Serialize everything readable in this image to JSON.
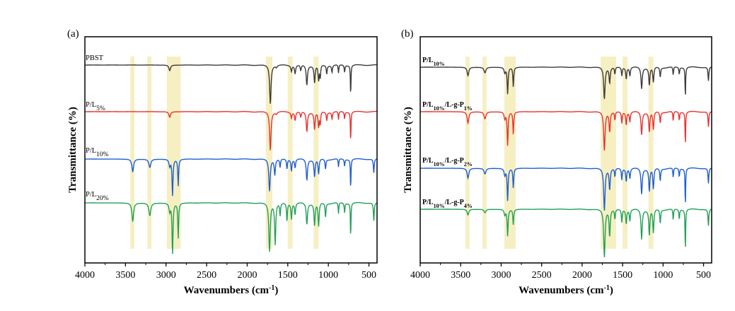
{
  "chart_data": [
    {
      "type": "line",
      "panel": "(a)",
      "xlabel": "Wavenumbers (cm⁻¹)",
      "ylabel": "Transmittance (%)",
      "xlim": [
        4000,
        400
      ],
      "x_reversed": true,
      "x_ticks": [
        4000,
        3500,
        3000,
        2500,
        2000,
        1500,
        1000,
        500
      ],
      "y_ticks": [],
      "grid": false,
      "highlight_bands": [
        [
          3440,
          3390
        ],
        [
          3230,
          3180
        ],
        [
          2990,
          2820
        ],
        [
          1770,
          1690
        ],
        [
          1500,
          1440
        ],
        [
          1180,
          1120
        ]
      ],
      "series": [
        {
          "name": "PBST",
          "name_parts": [
            [
              "PBST",
              ""
            ]
          ],
          "color": "#3c3c3c",
          "offset": 0,
          "peaks": [
            [
              2955,
              8,
              12
            ],
            [
              1715,
              55,
              10
            ],
            [
              1640,
              3,
              10
            ],
            [
              1455,
              8,
              8
            ],
            [
              1410,
              12,
              8
            ],
            [
              1340,
              8,
              8
            ],
            [
              1265,
              28,
              9
            ],
            [
              1170,
              25,
              8
            ],
            [
              1120,
              22,
              8
            ],
            [
              1100,
              18,
              6
            ],
            [
              1020,
              12,
              6
            ],
            [
              955,
              10,
              6
            ],
            [
              875,
              12,
              5
            ],
            [
              800,
              10,
              5
            ],
            [
              725,
              45,
              4
            ]
          ]
        },
        {
          "name": "P/L5%",
          "name_parts": [
            [
              "P/L",
              ""
            ],
            [
              "5%",
              "sub"
            ]
          ],
          "color": "#e8322f",
          "offset": 1,
          "peaks": [
            [
              2955,
              8,
              12
            ],
            [
              1715,
              55,
              10
            ],
            [
              1640,
              3,
              10
            ],
            [
              1455,
              8,
              8
            ],
            [
              1410,
              12,
              8
            ],
            [
              1340,
              8,
              8
            ],
            [
              1265,
              28,
              9
            ],
            [
              1170,
              25,
              8
            ],
            [
              1120,
              22,
              8
            ],
            [
              1100,
              18,
              6
            ],
            [
              1020,
              12,
              6
            ],
            [
              955,
              10,
              6
            ],
            [
              875,
              12,
              5
            ],
            [
              800,
              10,
              5
            ],
            [
              725,
              45,
              4
            ]
          ]
        },
        {
          "name": "P/L10%",
          "name_parts": [
            [
              "P/L",
              ""
            ],
            [
              "10%",
              "sub"
            ]
          ],
          "color": "#1f5fd2",
          "offset": 2,
          "peaks": [
            [
              3410,
              18,
              12
            ],
            [
              3200,
              12,
              14
            ],
            [
              2955,
              10,
              10
            ],
            [
              2920,
              52,
              7
            ],
            [
              2850,
              38,
              6
            ],
            [
              1725,
              45,
              10
            ],
            [
              1660,
              22,
              8
            ],
            [
              1595,
              12,
              6
            ],
            [
              1510,
              14,
              6
            ],
            [
              1455,
              16,
              7
            ],
            [
              1410,
              12,
              7
            ],
            [
              1265,
              30,
              9
            ],
            [
              1170,
              25,
              8
            ],
            [
              1120,
              22,
              8
            ],
            [
              1035,
              14,
              6
            ],
            [
              875,
              12,
              5
            ],
            [
              800,
              10,
              5
            ],
            [
              725,
              45,
              4
            ],
            [
              440,
              20,
              6
            ]
          ]
        },
        {
          "name": "P/L20%",
          "name_parts": [
            [
              "P/L",
              ""
            ],
            [
              "20%",
              "sub"
            ]
          ],
          "color": "#21a05a",
          "offset": 3,
          "peaks": [
            [
              3410,
              26,
              12
            ],
            [
              3200,
              18,
              14
            ],
            [
              2955,
              12,
              10
            ],
            [
              2920,
              72,
              7
            ],
            [
              2850,
              50,
              6
            ],
            [
              1725,
              68,
              10
            ],
            [
              1655,
              58,
              8
            ],
            [
              1595,
              18,
              6
            ],
            [
              1510,
              26,
              6
            ],
            [
              1455,
              22,
              7
            ],
            [
              1410,
              16,
              7
            ],
            [
              1265,
              30,
              9
            ],
            [
              1170,
              32,
              8
            ],
            [
              1120,
              34,
              8
            ],
            [
              1035,
              20,
              6
            ],
            [
              875,
              16,
              5
            ],
            [
              800,
              14,
              5
            ],
            [
              725,
              52,
              4
            ],
            [
              440,
              26,
              6
            ]
          ]
        }
      ]
    },
    {
      "type": "line",
      "panel": "(b)",
      "xlabel": "Wavenumbers (cm⁻¹)",
      "ylabel": "Transmittance (%)",
      "xlim": [
        4000,
        400
      ],
      "x_reversed": true,
      "x_ticks": [
        4000,
        3500,
        3000,
        2500,
        2000,
        1500,
        1000,
        500
      ],
      "y_ticks": [],
      "grid": false,
      "highlight_bands": [
        [
          3440,
          3390
        ],
        [
          3230,
          3180
        ],
        [
          2960,
          2820
        ],
        [
          1770,
          1580
        ],
        [
          1500,
          1440
        ],
        [
          1180,
          1120
        ]
      ],
      "series": [
        {
          "name": "P/L10%",
          "name_parts": [
            [
              "P/L",
              ""
            ],
            [
              "10%",
              "sub"
            ]
          ],
          "color": "#3c3c3c",
          "offset": 0,
          "peaks": [
            [
              3410,
              12,
              12
            ],
            [
              3200,
              8,
              14
            ],
            [
              2955,
              8,
              10
            ],
            [
              2920,
              38,
              7
            ],
            [
              2850,
              28,
              6
            ],
            [
              1725,
              45,
              10
            ],
            [
              1660,
              22,
              8
            ],
            [
              1595,
              10,
              6
            ],
            [
              1510,
              12,
              6
            ],
            [
              1455,
              16,
              7
            ],
            [
              1410,
              12,
              7
            ],
            [
              1265,
              30,
              9
            ],
            [
              1170,
              25,
              8
            ],
            [
              1120,
              22,
              8
            ],
            [
              1035,
              14,
              6
            ],
            [
              875,
              12,
              5
            ],
            [
              800,
              10,
              5
            ],
            [
              725,
              45,
              4
            ],
            [
              440,
              20,
              6
            ]
          ]
        },
        {
          "name": "P/L10%/L-g-P1%",
          "name_parts": [
            [
              "P/L",
              ""
            ],
            [
              "10%",
              "sub"
            ],
            [
              "/L-g-P",
              ""
            ],
            [
              "1%",
              "sub"
            ]
          ],
          "color": "#e8322f",
          "offset": 1,
          "peaks": [
            [
              3410,
              16,
              12
            ],
            [
              3200,
              10,
              14
            ],
            [
              2955,
              10,
              10
            ],
            [
              2920,
              48,
              7
            ],
            [
              2850,
              32,
              6
            ],
            [
              1725,
              55,
              10
            ],
            [
              1660,
              28,
              8
            ],
            [
              1595,
              12,
              6
            ],
            [
              1510,
              16,
              6
            ],
            [
              1455,
              18,
              7
            ],
            [
              1410,
              14,
              7
            ],
            [
              1265,
              32,
              9
            ],
            [
              1170,
              28,
              8
            ],
            [
              1120,
              26,
              8
            ],
            [
              1035,
              16,
              6
            ],
            [
              875,
              14,
              5
            ],
            [
              800,
              12,
              5
            ],
            [
              725,
              50,
              4
            ],
            [
              440,
              22,
              6
            ]
          ]
        },
        {
          "name": "P/L10%/L-g-P2%",
          "name_parts": [
            [
              "P/L",
              ""
            ],
            [
              "10%",
              "sub"
            ],
            [
              "/L-g-P",
              ""
            ],
            [
              "2%",
              "sub"
            ]
          ],
          "color": "#1f5fd2",
          "offset": 2,
          "peaks": [
            [
              3410,
              14,
              12
            ],
            [
              3200,
              8,
              14
            ],
            [
              2955,
              10,
              10
            ],
            [
              2920,
              46,
              7
            ],
            [
              2850,
              28,
              6
            ],
            [
              1725,
              60,
              10
            ],
            [
              1660,
              30,
              8
            ],
            [
              1595,
              12,
              6
            ],
            [
              1510,
              16,
              6
            ],
            [
              1455,
              18,
              7
            ],
            [
              1410,
              14,
              7
            ],
            [
              1265,
              36,
              9
            ],
            [
              1170,
              32,
              8
            ],
            [
              1120,
              30,
              8
            ],
            [
              1035,
              18,
              6
            ],
            [
              875,
              14,
              5
            ],
            [
              800,
              12,
              5
            ],
            [
              725,
              56,
              4
            ],
            [
              440,
              22,
              6
            ]
          ]
        },
        {
          "name": "P/L10%/L-g-P4%",
          "name_parts": [
            [
              "P/L",
              ""
            ],
            [
              "10%",
              "sub"
            ],
            [
              "/L-g-P",
              ""
            ],
            [
              "4%",
              "sub"
            ]
          ],
          "color": "#21a05a",
          "offset": 3,
          "peaks": [
            [
              3410,
              8,
              12
            ],
            [
              3200,
              5,
              14
            ],
            [
              2955,
              8,
              10
            ],
            [
              2920,
              38,
              7
            ],
            [
              2850,
              22,
              6
            ],
            [
              1725,
              68,
              10
            ],
            [
              1660,
              38,
              8
            ],
            [
              1595,
              14,
              6
            ],
            [
              1510,
              18,
              6
            ],
            [
              1455,
              20,
              7
            ],
            [
              1410,
              16,
              7
            ],
            [
              1265,
              42,
              9
            ],
            [
              1170,
              36,
              8
            ],
            [
              1120,
              34,
              8
            ],
            [
              1035,
              20,
              6
            ],
            [
              875,
              16,
              5
            ],
            [
              800,
              14,
              5
            ],
            [
              725,
              62,
              4
            ],
            [
              440,
              24,
              6
            ]
          ]
        }
      ]
    }
  ],
  "style": {
    "band_color": "#f6efc2"
  }
}
